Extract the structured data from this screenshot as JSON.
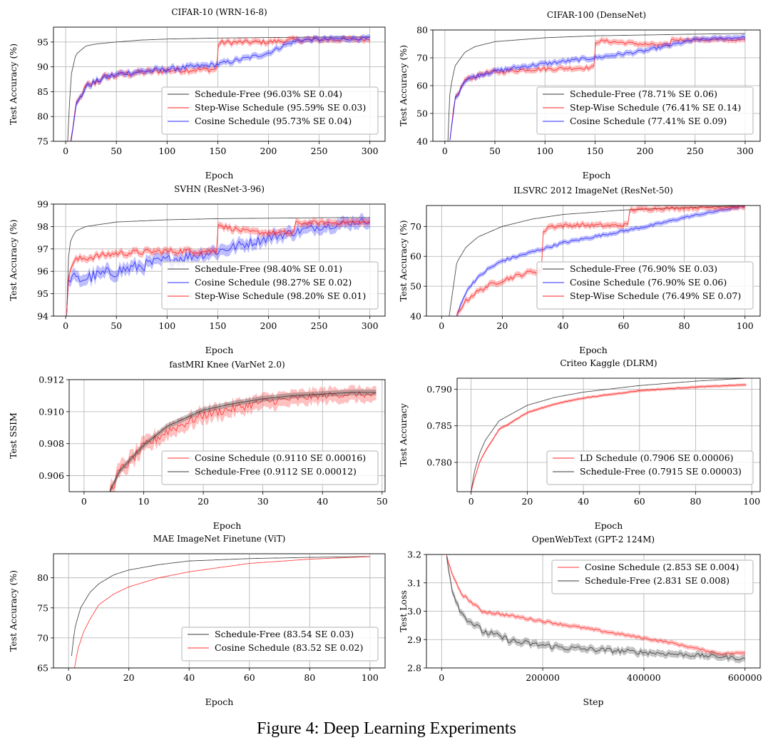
{
  "caption": "Figure 4: Deep Learning Experiments",
  "colors": {
    "schedule_free": "#3a3a3a",
    "step": "#ff2020",
    "cosine": "#2828ff",
    "cosine_red": "#ff3030",
    "ld": "#ff2020"
  },
  "chart_data": [
    {
      "type": "line",
      "title": "CIFAR-10 (WRN-16-8)",
      "xlabel": "Epoch",
      "ylabel": "Test Accuracy (%)",
      "xlim": [
        -12,
        315
      ],
      "ylim": [
        75,
        98
      ],
      "xticks": [
        0,
        50,
        100,
        150,
        200,
        250,
        300
      ],
      "yticks": [
        75,
        80,
        85,
        90,
        95
      ],
      "grid": true,
      "legend_position": "lower-right",
      "series": [
        {
          "name": "Schedule-Free (96.03% SE 0.04)",
          "color": "schedule_free",
          "band": 0,
          "x": [
            2,
            5,
            10,
            20,
            30,
            50,
            75,
            100,
            150,
            200,
            250,
            300
          ],
          "y": [
            75,
            88,
            92.5,
            94.2,
            94.6,
            95.0,
            95.4,
            95.6,
            95.8,
            95.9,
            96.0,
            96.03
          ]
        },
        {
          "name": "Step-Wise Schedule (95.59% SE 0.03)",
          "color": "step",
          "band": 0.6,
          "noise": 0.7,
          "x": [
            5,
            10,
            20,
            40,
            60,
            100,
            149,
            150,
            155,
            200,
            225,
            300
          ],
          "y": [
            75,
            82,
            86,
            88,
            88.6,
            89.3,
            89.5,
            94.6,
            94.9,
            95.0,
            95.4,
            95.59
          ]
        },
        {
          "name": "Cosine Schedule (95.73% SE 0.04)",
          "color": "cosine",
          "band": 0.6,
          "noise": 0.6,
          "x": [
            5,
            10,
            20,
            40,
            60,
            100,
            150,
            180,
            200,
            215,
            230,
            260,
            300
          ],
          "y": [
            75,
            82,
            86,
            88,
            88.8,
            89.5,
            90.5,
            91.8,
            92.8,
            94.3,
            95.4,
            95.6,
            95.73
          ]
        }
      ]
    },
    {
      "type": "line",
      "title": "CIFAR-100 (DenseNet)",
      "xlabel": "Epoch",
      "ylabel": "Test Accuracy (%)",
      "xlim": [
        -12,
        315
      ],
      "ylim": [
        40,
        80
      ],
      "xticks": [
        0,
        50,
        100,
        150,
        200,
        250,
        300
      ],
      "yticks": [
        40,
        50,
        60,
        70,
        80
      ],
      "grid": true,
      "legend_position": "lower-right",
      "series": [
        {
          "name": "Schedule-Free (78.71% SE 0.06)",
          "color": "schedule_free",
          "band": 0,
          "x": [
            3,
            5,
            10,
            20,
            30,
            50,
            100,
            150,
            200,
            250,
            300
          ],
          "y": [
            40,
            58,
            67,
            72,
            74,
            75.8,
            77.2,
            77.9,
            78.2,
            78.5,
            78.71
          ]
        },
        {
          "name": "Step-Wise Schedule (76.41% SE 0.14)",
          "color": "step",
          "band": 1.0,
          "noise": 0.8,
          "x": [
            5,
            10,
            20,
            40,
            80,
            149,
            150,
            160,
            200,
            225,
            226,
            300
          ],
          "y": [
            40,
            55,
            62,
            64.5,
            65.8,
            66.5,
            75.8,
            76.0,
            74.8,
            74.5,
            76.5,
            76.41
          ]
        },
        {
          "name": "Cosine Schedule (77.41% SE 0.09)",
          "color": "cosine",
          "band": 1.0,
          "noise": 0.8,
          "x": [
            5,
            10,
            20,
            40,
            80,
            150,
            200,
            250,
            300
          ],
          "y": [
            40,
            55,
            62,
            64.5,
            67,
            70,
            72.5,
            76.5,
            77.41
          ]
        }
      ]
    },
    {
      "type": "line",
      "title": "SVHN (ResNet-3-96)",
      "xlabel": "Epoch",
      "ylabel": "Test Accuracy (%)",
      "xlim": [
        -12,
        315
      ],
      "ylim": [
        94,
        99
      ],
      "xticks": [
        0,
        50,
        100,
        150,
        200,
        250,
        300
      ],
      "yticks": [
        94,
        95,
        96,
        97,
        98,
        99
      ],
      "grid": true,
      "legend_position": "lower-right",
      "series": [
        {
          "name": "Schedule-Free (98.40% SE 0.01)",
          "color": "schedule_free",
          "band": 0,
          "x": [
            1,
            3,
            5,
            10,
            20,
            50,
            100,
            150,
            200,
            250,
            300
          ],
          "y": [
            94,
            96.8,
            97.4,
            97.8,
            98.0,
            98.2,
            98.3,
            98.35,
            98.37,
            98.39,
            98.4
          ]
        },
        {
          "name": "Cosine Schedule (98.27% SE 0.02)",
          "color": "cosine",
          "band": 0.25,
          "noise": 0.3,
          "x": [
            1,
            3,
            5,
            10,
            20,
            50,
            100,
            150,
            200,
            250,
            300
          ],
          "y": [
            94,
            95.5,
            95.8,
            95.6,
            95.7,
            96.0,
            96.5,
            96.9,
            97.5,
            98.0,
            98.27
          ]
        },
        {
          "name": "Step-Wise Schedule (98.20% SE 0.01)",
          "color": "step",
          "band": 0.15,
          "noise": 0.15,
          "x": [
            1,
            3,
            5,
            10,
            20,
            50,
            100,
            149,
            150,
            155,
            180,
            225,
            226,
            300
          ],
          "y": [
            94,
            95.8,
            96.2,
            96.5,
            96.6,
            96.8,
            96.9,
            96.9,
            98.2,
            98.0,
            97.75,
            97.7,
            98.15,
            98.2
          ]
        }
      ]
    },
    {
      "type": "line",
      "title": "ILSVRC 2012 ImageNet (ResNet-50)",
      "xlabel": "Epoch",
      "ylabel": "Test Accuracy (%)",
      "xlim": [
        -5,
        105
      ],
      "ylim": [
        40,
        77
      ],
      "xticks": [
        0,
        20,
        40,
        60,
        80,
        100
      ],
      "yticks": [
        40,
        50,
        60,
        70
      ],
      "grid": true,
      "legend_position": "lower-right",
      "series": [
        {
          "name": "Schedule-Free (76.90% SE 0.03)",
          "color": "schedule_free",
          "band": 0,
          "x": [
            2.5,
            5,
            8,
            12,
            20,
            30,
            40,
            60,
            80,
            100
          ],
          "y": [
            40,
            58,
            63,
            66.5,
            70,
            72.5,
            74,
            75.5,
            76.3,
            76.9
          ]
        },
        {
          "name": "Cosine Schedule (76.90% SE 0.06)",
          "color": "cosine",
          "band": 0.8,
          "noise": 0.5,
          "x": [
            5,
            7,
            10,
            15,
            20,
            30,
            40,
            50,
            60,
            70,
            80,
            90,
            100
          ],
          "y": [
            40,
            46,
            51,
            55.5,
            58.5,
            61.5,
            64.5,
            66.5,
            68.5,
            70.5,
            73,
            75,
            76.9
          ]
        },
        {
          "name": "Step-Wise Schedule (76.49% SE 0.07)",
          "color": "step",
          "band": 1.0,
          "noise": 0.8,
          "x": [
            5,
            7,
            10,
            15,
            20,
            25,
            30,
            32.9,
            33,
            35,
            45,
            55,
            61.9,
            62,
            70,
            80,
            90,
            100
          ],
          "y": [
            40,
            44,
            47,
            50,
            52,
            53.5,
            55,
            55,
            67,
            70,
            70.5,
            70.3,
            70.5,
            75.5,
            76,
            76.2,
            76.4,
            76.49
          ]
        }
      ]
    },
    {
      "type": "line",
      "title": "fastMRI Knee (VarNet 2.0)",
      "xlabel": "Epoch",
      "ylabel": "Test SSIM",
      "xlim": [
        -2.5,
        50.5
      ],
      "ylim": [
        0.905,
        0.912
      ],
      "xticks": [
        0,
        10,
        20,
        30,
        40,
        50
      ],
      "yticks": [
        0.906,
        0.908,
        0.91,
        0.912
      ],
      "grid": true,
      "legend_position": "lower-right",
      "series": [
        {
          "name": "Cosine Schedule (0.9110 SE 0.00016)",
          "color": "cosine_red",
          "band": 0.00045,
          "noise": 0.00035,
          "x": [
            4.3,
            6,
            8,
            10,
            14,
            20,
            25,
            30,
            35,
            40,
            45,
            49
          ],
          "y": [
            0.905,
            0.9063,
            0.907,
            0.9078,
            0.9088,
            0.9098,
            0.9102,
            0.9106,
            0.9108,
            0.911,
            0.9111,
            0.911
          ]
        },
        {
          "name": "Schedule-Free (0.9112 SE 0.00012)",
          "color": "schedule_free",
          "band": 0.00018,
          "x": [
            4.3,
            6,
            8,
            10,
            14,
            20,
            25,
            30,
            35,
            40,
            45,
            49
          ],
          "y": [
            0.905,
            0.9063,
            0.9071,
            0.9079,
            0.9091,
            0.9101,
            0.9105,
            0.9108,
            0.911,
            0.9111,
            0.9112,
            0.9112
          ]
        }
      ]
    },
    {
      "type": "line",
      "title": "Criteo Kaggle (DLRM)",
      "xlabel": "Epoch",
      "ylabel": "Test Accuracy",
      "xlim": [
        -5,
        103
      ],
      "ylim": [
        0.776,
        0.7915
      ],
      "xticks": [
        0,
        20,
        40,
        60,
        80,
        100
      ],
      "yticks": [
        0.78,
        0.785,
        0.79
      ],
      "grid": true,
      "legend_position": "lower-right",
      "series": [
        {
          "name": "LD Schedule (0.7906 SE 0.00006)",
          "color": "ld",
          "band": 0.0002,
          "noise": 6e-05,
          "x": [
            0,
            1,
            3,
            5,
            10,
            20,
            30,
            40,
            60,
            80,
            98
          ],
          "y": [
            0.776,
            0.7775,
            0.78,
            0.7815,
            0.7845,
            0.7868,
            0.788,
            0.7888,
            0.7898,
            0.7903,
            0.7906
          ]
        },
        {
          "name": "Schedule-Free (0.7915 SE 0.00003)",
          "color": "schedule_free",
          "band": 0,
          "x": [
            0,
            1,
            3,
            5,
            10,
            20,
            30,
            40,
            60,
            80,
            98
          ],
          "y": [
            0.776,
            0.7785,
            0.7812,
            0.783,
            0.7857,
            0.7878,
            0.7889,
            0.7896,
            0.7905,
            0.7911,
            0.7915
          ]
        }
      ]
    },
    {
      "type": "line",
      "title": "MAE ImageNet Finetune (ViT)",
      "xlabel": "Epoch",
      "ylabel": "Test Accuracy (%)",
      "xlim": [
        -5,
        105
      ],
      "ylim": [
        65,
        84
      ],
      "xticks": [
        0,
        20,
        40,
        60,
        80,
        100
      ],
      "yticks": [
        65,
        70,
        75,
        80
      ],
      "grid": true,
      "legend_position": "lower-right",
      "series": [
        {
          "name": "Schedule-Free (83.54 SE 0.03)",
          "color": "schedule_free",
          "band": 0,
          "x": [
            1,
            2,
            4,
            7,
            10,
            15,
            20,
            30,
            40,
            60,
            80,
            100
          ],
          "y": [
            67,
            71.5,
            75,
            77.5,
            79,
            80.5,
            81.3,
            82.2,
            82.8,
            83.2,
            83.4,
            83.54
          ]
        },
        {
          "name": "Cosine Schedule (83.52 SE 0.02)",
          "color": "cosine_red",
          "band": 0,
          "x": [
            2,
            3,
            5,
            7,
            10,
            15,
            20,
            30,
            40,
            60,
            80,
            100
          ],
          "y": [
            65,
            68,
            71,
            73,
            75.5,
            77.3,
            78.5,
            80,
            81,
            82.4,
            83.1,
            83.52
          ]
        }
      ]
    },
    {
      "type": "line",
      "title": "OpenWebText (GPT-2 124M)",
      "xlabel": "Step",
      "ylabel": "Test Loss",
      "xlim": [
        -30000,
        630000
      ],
      "ylim": [
        2.8,
        3.2
      ],
      "xticks": [
        0,
        200000,
        400000,
        600000
      ],
      "yticks": [
        2.8,
        2.9,
        3.0,
        3.1,
        3.2
      ],
      "grid": true,
      "legend_position": "upper-right",
      "series": [
        {
          "name": "Cosine Schedule (2.853 SE 0.004)",
          "color": "cosine_red",
          "band": 0.008,
          "noise": 0.005,
          "x": [
            10000,
            20000,
            40000,
            80000,
            150000,
            250000,
            350000,
            450000,
            550000,
            600000
          ],
          "y": [
            3.2,
            3.13,
            3.06,
            3.0,
            2.98,
            2.95,
            2.92,
            2.89,
            2.85,
            2.853
          ]
        },
        {
          "name": "Schedule-Free (2.831 SE 0.008)",
          "color": "schedule_free",
          "band": 0.012,
          "noise": 0.012,
          "x": [
            10000,
            20000,
            40000,
            80000,
            150000,
            250000,
            350000,
            450000,
            550000,
            600000
          ],
          "y": [
            3.2,
            3.08,
            2.99,
            2.93,
            2.89,
            2.87,
            2.86,
            2.85,
            2.84,
            2.831
          ]
        }
      ]
    }
  ]
}
